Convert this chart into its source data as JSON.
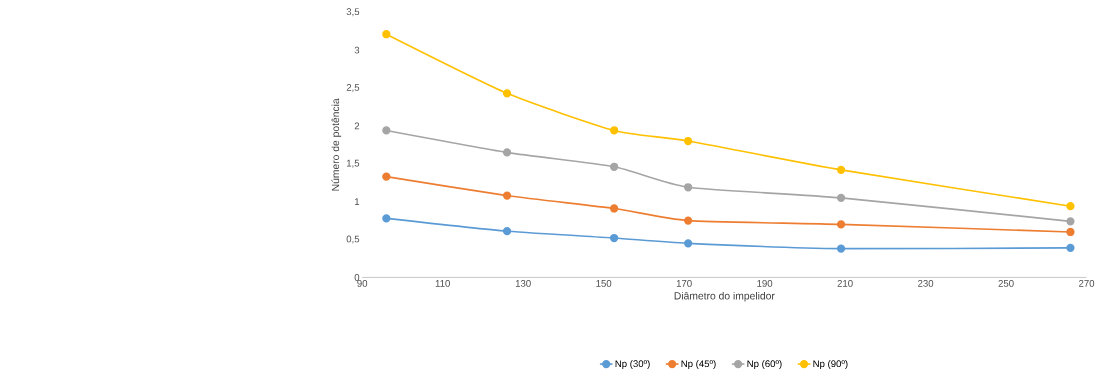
{
  "chart_data": {
    "type": "line",
    "xlabel": "Diâmetro do impelidor",
    "ylabel": "Número de potência",
    "x": [
      96,
      126,
      152.6,
      171,
      209,
      266
    ],
    "series": [
      {
        "name": "Np (30º)",
        "color": "#5b9bd5",
        "values": [
          0.78,
          0.61,
          0.52,
          0.45,
          0.38,
          0.39
        ]
      },
      {
        "name": "Np (45º)",
        "color": "#ed7d31",
        "values": [
          1.33,
          1.08,
          0.91,
          0.75,
          0.7,
          0.6
        ]
      },
      {
        "name": "Np (60º)",
        "color": "#a5a5a5",
        "values": [
          1.94,
          1.65,
          1.46,
          1.19,
          1.05,
          0.74
        ]
      },
      {
        "name": "Np (90º)",
        "color": "#ffc000",
        "values": [
          3.21,
          2.43,
          1.94,
          1.8,
          1.42,
          0.94
        ]
      }
    ],
    "xlim": [
      90,
      270
    ],
    "xticks": [
      90,
      110,
      130,
      150,
      170,
      190,
      210,
      230,
      250,
      270
    ],
    "ylim": [
      0,
      3.5
    ],
    "yticks": [
      0,
      {
        "value": 0.5,
        "label": "0,5"
      },
      1,
      {
        "value": 1.5,
        "label": "1,5"
      },
      2,
      {
        "value": 2.5,
        "label": "2,5"
      },
      3,
      {
        "value": 3.5,
        "label": "3,5"
      }
    ],
    "grid": false,
    "legend": "bottom",
    "marker": "circle",
    "line_style": "solid"
  }
}
